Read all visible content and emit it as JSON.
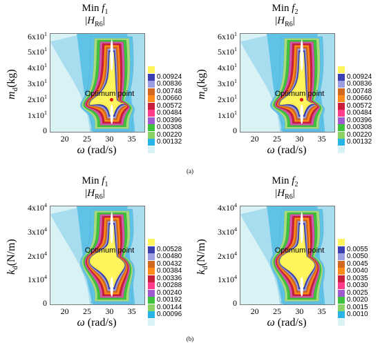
{
  "captions": {
    "a": "(a)",
    "b": "(b)"
  },
  "chart_data": [
    {
      "type": "heatmap",
      "title": "Min f1",
      "subtitle": "|HR6|",
      "xlabel": "ω (rad/s)",
      "ylabel": "md(kg)",
      "xticks": [
        "20",
        "25",
        "30",
        "35"
      ],
      "yticks": [
        "0",
        "1x10^1",
        "2x10^1",
        "3x10^1",
        "4x10^1",
        "5x10^1",
        "6x10^1"
      ],
      "xlim": [
        16.5,
        37.5
      ],
      "ylim": [
        0,
        62
      ],
      "annotation": "Optimum point",
      "optimum": {
        "x": 30.2,
        "y": 20
      },
      "legend": [
        "0.00924",
        "0.00836",
        "0.00748",
        "0.00660",
        "0.00572",
        "0.00484",
        "0.00396",
        "0.00308",
        "0.00220",
        "0.00132"
      ]
    },
    {
      "type": "heatmap",
      "title": "Min f2",
      "subtitle": "|HR6|",
      "xlabel": "ω (rad/s)",
      "ylabel": "md(kg)",
      "xticks": [
        "20",
        "25",
        "30",
        "35"
      ],
      "yticks": [
        "0",
        "1x10^1",
        "2x10^1",
        "3x10^1",
        "4x10^1",
        "5x10^1",
        "6x10^1"
      ],
      "xlim": [
        16.5,
        37.5
      ],
      "ylim": [
        0,
        62
      ],
      "annotation": "Optimum point",
      "optimum": {
        "x": 30.2,
        "y": 20
      },
      "legend": [
        "0.00924",
        "0.00836",
        "0.00748",
        "0.00660",
        "0.00572",
        "0.00484",
        "0.00396",
        "0.00308",
        "0.00220",
        "0.00132"
      ]
    },
    {
      "type": "heatmap",
      "title": "Min f1",
      "subtitle": "|HR6|",
      "xlabel": "ω (rad/s)",
      "ylabel": "kd(N/m)",
      "xticks": [
        "20",
        "25",
        "30",
        "35"
      ],
      "yticks": [
        "0",
        "1x10^4",
        "2x10^4",
        "3x10^4",
        "4x10^4"
      ],
      "xlim": [
        16.5,
        37.5
      ],
      "ylim": [
        0,
        41000
      ],
      "annotation": "Optimum point",
      "legend": [
        "0.00528",
        "0.00480",
        "0.00432",
        "0.00384",
        "0.00336",
        "0.00288",
        "0.00240",
        "0.00192",
        "0.00144",
        "0.00096"
      ]
    },
    {
      "type": "heatmap",
      "title": "Min f2",
      "subtitle": "|HR6|",
      "xlabel": "ω (rad/s)",
      "ylabel": "kd(N/m)",
      "xticks": [
        "20",
        "25",
        "30",
        "35"
      ],
      "yticks": [
        "0",
        "1x10^4",
        "2x10^4",
        "3x10^4",
        "4x10^4"
      ],
      "xlim": [
        16.5,
        37.5
      ],
      "ylim": [
        0,
        41000
      ],
      "annotation": "Optimum point",
      "legend": [
        "0.0055",
        "0.0050",
        "0.0045",
        "0.0040",
        "0.0035",
        "0.0030",
        "0.0025",
        "0.0020",
        "0.0015",
        "0.0010"
      ]
    }
  ],
  "colors": {
    "legend_swatches": [
      "#fff45c",
      "#3b3fb0",
      "#9b9ee0",
      "#d2691e",
      "#ff8c1a",
      "#c81e3c",
      "#ff3c8c",
      "#a05ad2",
      "#3cc23c",
      "#8ad264",
      "#28b4e6",
      "#d8f2f6"
    ],
    "bands": [
      "#d8f2f6",
      "#a8dcef",
      "#5fc3e8",
      "#a6dc7e",
      "#3cc23c",
      "#d257a8",
      "#c81e3c",
      "#ff8c1a",
      "#d2691e",
      "#9b9ee0",
      "#3b3fb0",
      "#fff45c"
    ]
  }
}
